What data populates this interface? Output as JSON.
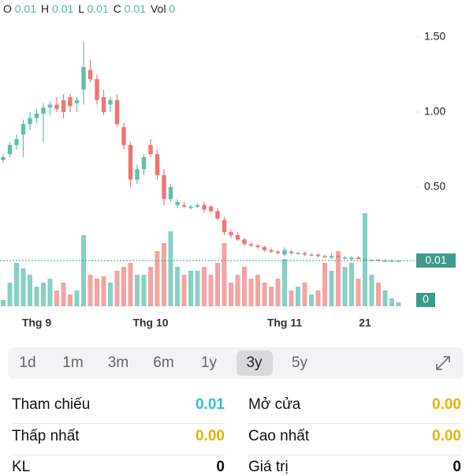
{
  "ohlc_header": [
    {
      "label": "O",
      "value": "0.01"
    },
    {
      "label": "H",
      "value": "0.01"
    },
    {
      "label": "L",
      "value": "0.01"
    },
    {
      "label": "C",
      "value": "0.01"
    },
    {
      "label": "Vol",
      "value": "0"
    }
  ],
  "chart_data": {
    "type": "candlestick",
    "up_color": "#5fbfae",
    "down_color": "#ef7474",
    "volume_up_color": "#86d0c4",
    "volume_down_color": "#f4a3a3",
    "categories": [
      null,
      null,
      null,
      null,
      null,
      "Thg 9",
      null,
      null,
      null,
      null,
      null,
      null,
      null,
      null,
      null,
      null,
      null,
      null,
      null,
      null,
      null,
      null,
      "Thg 10",
      null,
      null,
      null,
      null,
      null,
      null,
      null,
      null,
      null,
      null,
      null,
      null,
      null,
      null,
      null,
      null,
      null,
      null,
      null,
      "Thg 11",
      null,
      null,
      null,
      null,
      null,
      null,
      null,
      null,
      null,
      null,
      null,
      "21",
      null,
      null,
      null,
      null,
      null
    ],
    "open": [
      0.68,
      0.72,
      0.78,
      0.85,
      0.92,
      0.96,
      0.99,
      1.03,
      1.05,
      1.08,
      1.1,
      1.06,
      1.15,
      1.28,
      1.22,
      1.1,
      1.05,
      1.08,
      0.9,
      0.78,
      0.55,
      0.62,
      0.78,
      0.72,
      0.58,
      0.42,
      0.38,
      0.38,
      0.36,
      0.37,
      0.38,
      0.37,
      0.34,
      0.28,
      0.2,
      0.18,
      0.15,
      0.12,
      0.11,
      0.1,
      0.08,
      0.07,
      0.05,
      0.07,
      0.06,
      0.06,
      0.05,
      0.05,
      0.04,
      0.03,
      0.04,
      0.03,
      0.02,
      0.03,
      0.02,
      0.01,
      0.015,
      0.01,
      0.01,
      0.01
    ],
    "high": [
      0.72,
      0.8,
      0.85,
      0.95,
      1.0,
      1.02,
      1.06,
      1.07,
      1.1,
      1.12,
      1.12,
      1.1,
      1.47,
      1.35,
      1.25,
      1.15,
      1.1,
      1.12,
      0.93,
      0.8,
      0.65,
      0.72,
      0.82,
      0.75,
      0.62,
      0.52,
      0.42,
      0.4,
      0.38,
      0.39,
      0.4,
      0.38,
      0.36,
      0.3,
      0.22,
      0.2,
      0.16,
      0.13,
      0.12,
      0.11,
      0.09,
      0.08,
      0.1,
      0.08,
      0.07,
      0.07,
      0.06,
      0.06,
      0.05,
      0.06,
      0.05,
      0.04,
      0.04,
      0.04,
      0.03,
      0.02,
      0.02,
      0.02,
      0.015,
      0.01
    ],
    "low": [
      0.66,
      0.7,
      0.75,
      0.7,
      0.88,
      0.93,
      0.8,
      0.98,
      1.0,
      0.96,
      1.0,
      1.0,
      1.05,
      1.2,
      1.05,
      0.98,
      1.0,
      0.9,
      0.75,
      0.5,
      0.52,
      0.58,
      0.7,
      0.55,
      0.38,
      0.4,
      0.36,
      0.36,
      0.35,
      0.36,
      0.33,
      0.33,
      0.28,
      0.18,
      0.16,
      0.14,
      0.11,
      0.1,
      0.09,
      0.07,
      0.06,
      0.05,
      0.04,
      0.05,
      0.05,
      0.04,
      0.04,
      0.03,
      0.03,
      0.02,
      0.03,
      0.02,
      0.01,
      0.02,
      0.01,
      0.01,
      0.01,
      0.01,
      0.01,
      0.01
    ],
    "close": [
      0.7,
      0.78,
      0.82,
      0.92,
      0.96,
      0.99,
      1.03,
      1.05,
      1.02,
      1.0,
      1.04,
      1.08,
      1.3,
      1.22,
      1.08,
      1.0,
      1.08,
      0.92,
      0.78,
      0.55,
      0.62,
      0.7,
      0.72,
      0.58,
      0.42,
      0.5,
      0.4,
      0.37,
      0.37,
      0.38,
      0.35,
      0.34,
      0.29,
      0.2,
      0.18,
      0.15,
      0.12,
      0.11,
      0.1,
      0.08,
      0.07,
      0.06,
      0.08,
      0.06,
      0.06,
      0.05,
      0.05,
      0.04,
      0.035,
      0.04,
      0.03,
      0.03,
      0.03,
      0.02,
      0.02,
      0.015,
      0.01,
      0.01,
      0.01,
      0.01
    ],
    "volume": [
      8,
      30,
      55,
      48,
      40,
      25,
      30,
      35,
      20,
      30,
      15,
      20,
      90,
      40,
      35,
      38,
      30,
      45,
      50,
      55,
      40,
      40,
      50,
      70,
      80,
      95,
      50,
      40,
      45,
      45,
      50,
      40,
      55,
      80,
      30,
      40,
      50,
      35,
      40,
      30,
      25,
      35,
      60,
      20,
      25,
      30,
      15,
      20,
      55,
      45,
      70,
      50,
      55,
      35,
      118,
      40,
      30,
      20,
      10,
      5
    ],
    "ylim": [
      0,
      1.6
    ],
    "yticks": [
      {
        "value": 0.5,
        "label": "0.50"
      },
      {
        "value": 1.0,
        "label": "1.00"
      },
      {
        "value": 1.5,
        "label": "1.50"
      }
    ],
    "vlim": [
      0,
      120
    ],
    "vticks": [
      0
    ],
    "last_price": {
      "value": 0.01,
      "label": "0.01"
    }
  },
  "tabs": [
    "1d",
    "1m",
    "3m",
    "6m",
    "1y",
    "3y",
    "5y"
  ],
  "selected_tab": 5,
  "stats": [
    [
      {
        "label": "Tham chiếu",
        "value": "0.01",
        "color": "#2fc3d3"
      },
      {
        "label": "Mở cửa",
        "value": "0.00",
        "color": "#e5b400"
      }
    ],
    [
      {
        "label": "Thấp nhất",
        "value": "0.00",
        "color": "#e5b400"
      },
      {
        "label": "Cao nhất",
        "value": "0.00",
        "color": "#e5b400"
      }
    ],
    [
      {
        "label": "KL",
        "value": "0",
        "color": "#111"
      },
      {
        "label": "Giá trị",
        "value": "0",
        "color": "#111"
      }
    ]
  ]
}
